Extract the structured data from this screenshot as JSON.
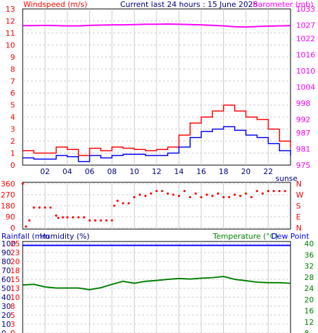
{
  "header": {
    "left_title": "Windspeed (m/s)",
    "center_title": "Current last 24 hours : 15 June 2025",
    "right_title": "Barometer (mb)"
  },
  "direction_panel": {
    "y_ticks": [
      "360",
      "270",
      "180",
      "90",
      "0"
    ],
    "right_labels": [
      "N",
      "W",
      "S",
      "E",
      "N"
    ],
    "overflow_label": "sunse"
  },
  "bottom_panel": {
    "left_title_1": "Rainfall (mm",
    "left_title_2": "Humidity (%)",
    "right_title_1": "Temperature (°C)",
    "right_title_2": "Dew Point",
    "humidity_ticks": [
      "100",
      "90",
      "80",
      "70",
      "60",
      "50",
      "40",
      "30",
      "20",
      "10",
      "0"
    ],
    "rain_ticks": [
      "25",
      "23",
      "20",
      "18",
      "15",
      "13",
      "10",
      "8",
      "5",
      "3",
      "0"
    ]
  },
  "colors": {
    "wind_gust": "#ff0000",
    "wind_avg": "#0000ff",
    "barometer": "#ff00ff",
    "direction": "#ff0000",
    "temperature": "#008000",
    "dewpoint": "#0000ff",
    "grid": "#cccccc",
    "axis_left": "#ff0000",
    "axis_right": "#ff00ff",
    "axis_temp": "#008000"
  },
  "chart_data": [
    {
      "type": "line",
      "name": "wind-barometer",
      "x_ticks": [
        "02",
        "04",
        "06",
        "08",
        "10",
        "12",
        "14",
        "16",
        "18",
        "20",
        "22"
      ],
      "y_ticks": [
        "0",
        "1",
        "2",
        "3",
        "4",
        "5",
        "6",
        "7",
        "8",
        "9",
        "10",
        "11",
        "12",
        "13"
      ],
      "y2_ticks": [
        "975",
        "981",
        "987",
        "992",
        "998",
        "1004",
        "1010",
        "1016",
        "1022",
        "1027",
        "1033"
      ],
      "ylim": [
        0,
        13
      ],
      "y2lim": [
        975,
        1033
      ],
      "x": [
        0,
        1,
        2,
        3,
        4,
        5,
        6,
        7,
        8,
        9,
        10,
        11,
        12,
        13,
        14,
        15,
        16,
        17,
        18,
        19,
        20,
        21,
        22,
        23,
        24
      ],
      "series": [
        {
          "name": "gust",
          "axis": "left",
          "values": [
            1.2,
            1,
            1,
            1.5,
            1.3,
            0.8,
            1.4,
            1.2,
            1.5,
            1.4,
            1.3,
            1.2,
            1.3,
            1.5,
            2.5,
            3.5,
            4,
            4.5,
            5,
            4.5,
            4,
            3.8,
            3,
            2,
            1.5
          ]
        },
        {
          "name": "average",
          "axis": "left",
          "values": [
            0.6,
            0.5,
            0.5,
            0.8,
            0.7,
            0.3,
            0.8,
            0.6,
            0.8,
            0.9,
            0.9,
            0.8,
            0.8,
            1,
            1.5,
            2.3,
            2.8,
            3,
            3.2,
            2.9,
            2.5,
            2.3,
            1.8,
            1.2,
            0.8
          ]
        },
        {
          "name": "barometer",
          "axis": "right",
          "values": [
            1026.8,
            1026.8,
            1026.9,
            1026.8,
            1026.7,
            1026.7,
            1026.9,
            1027.0,
            1027.1,
            1027.1,
            1027.2,
            1027.3,
            1027.3,
            1027.4,
            1027.3,
            1027.2,
            1027.1,
            1026.9,
            1026.7,
            1026.4,
            1026.3,
            1026.5,
            1026.6,
            1026.7,
            1026.8
          ]
        }
      ]
    },
    {
      "type": "scatter",
      "name": "wind-direction",
      "ylim": [
        0,
        360
      ],
      "x": [
        0,
        0.3,
        0.6,
        1,
        1.5,
        2,
        2.5,
        3,
        3.2,
        3.6,
        4,
        4.5,
        5,
        5.5,
        6,
        6.5,
        7,
        7.5,
        8,
        8.2,
        8.5,
        9,
        9.5,
        10,
        10.5,
        11,
        11.5,
        12,
        12.5,
        13,
        13.5,
        14,
        14.5,
        15,
        15.5,
        16,
        16.5,
        17,
        17.5,
        18,
        18.5,
        19,
        19.5,
        20,
        20.5,
        21,
        21.5,
        22,
        22.5,
        23,
        23.5
      ],
      "y": [
        360,
        10,
        60,
        165,
        165,
        165,
        165,
        100,
        80,
        85,
        85,
        85,
        85,
        85,
        60,
        60,
        60,
        60,
        60,
        180,
        220,
        200,
        200,
        250,
        270,
        260,
        280,
        300,
        300,
        280,
        270,
        260,
        300,
        250,
        280,
        250,
        270,
        260,
        280,
        250,
        250,
        270,
        260,
        280,
        250,
        300,
        280,
        300,
        300,
        300,
        300
      ]
    },
    {
      "type": "line",
      "name": "temp-humidity",
      "ylim": [
        0,
        100
      ],
      "y2_ticks": [
        "8",
        "12",
        "16",
        "20",
        "24",
        "28",
        "32",
        "36",
        "40"
      ],
      "y2lim": [
        8,
        40
      ],
      "x": [
        0,
        1,
        2,
        3,
        4,
        5,
        6,
        7,
        8,
        9,
        10,
        11,
        12,
        13,
        14,
        15,
        16,
        17,
        18,
        19,
        20,
        21,
        22,
        23,
        24
      ],
      "series": [
        {
          "name": "humidity",
          "axis": "left",
          "values": [
            98,
            98,
            98,
            98,
            98,
            98,
            98,
            98,
            98,
            98,
            98,
            98,
            98,
            98,
            98,
            98,
            98,
            98,
            98,
            98,
            98,
            98,
            98,
            98,
            98
          ]
        },
        {
          "name": "temperature",
          "axis": "right",
          "values": [
            25.2,
            25.4,
            24.5,
            24.1,
            24.1,
            24.1,
            23.5,
            24.2,
            25.4,
            26.5,
            25.8,
            26.5,
            26.8,
            27.2,
            27.5,
            27.3,
            27.6,
            27.8,
            28.2,
            27.2,
            26.7,
            26.2,
            26.0,
            26.0,
            25.8
          ]
        }
      ]
    }
  ]
}
